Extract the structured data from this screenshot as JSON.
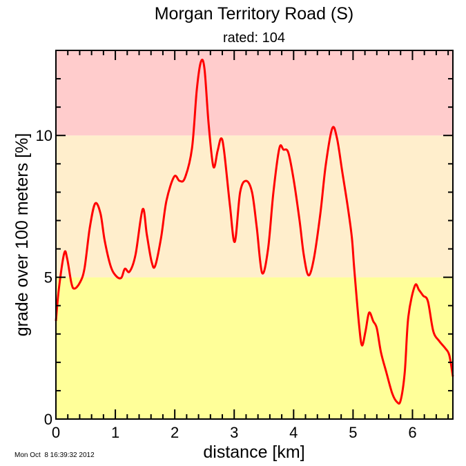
{
  "chart_data": {
    "type": "line",
    "title": "Morgan Territory Road (S)",
    "subtitle": "rated: 104",
    "xlabel": "distance [km]",
    "ylabel": "grade over 100 meters [%]",
    "timestamp": "Mon Oct  8 16:39:32 2012",
    "xlim": [
      0,
      6.68
    ],
    "ylim": [
      0,
      13
    ],
    "x_ticks": [
      0,
      1,
      2,
      3,
      4,
      5,
      6
    ],
    "y_ticks": [
      0,
      5,
      10
    ],
    "x_minor_step": 0.2,
    "y_minor_step": 1,
    "grid": false,
    "bands": [
      {
        "from": 0,
        "to": 5,
        "color": "#ffff99"
      },
      {
        "from": 5,
        "to": 10,
        "color": "#ffeecc"
      },
      {
        "from": 10,
        "to": 13,
        "color": "#ffcccc"
      }
    ],
    "line_color": "#ff0000",
    "series": [
      {
        "x": [
          0,
          0.05,
          0.14,
          0.19,
          0.26,
          0.31,
          0.4,
          0.48,
          0.57,
          0.66,
          0.75,
          0.82,
          0.92,
          1.01,
          1.1,
          1.16,
          1.24,
          1.34,
          1.46,
          1.53,
          1.61,
          1.67,
          1.77,
          1.86,
          1.99,
          2.08,
          2.17,
          2.29,
          2.37,
          2.44,
          2.5,
          2.57,
          2.65,
          2.72,
          2.78,
          2.83,
          2.93,
          3.01,
          3.1,
          3.2,
          3.3,
          3.38,
          3.47,
          3.57,
          3.66,
          3.76,
          3.83,
          3.91,
          4.0,
          4.1,
          4.17,
          4.25,
          4.34,
          4.45,
          4.54,
          4.65,
          4.73,
          4.82,
          4.91,
          4.98,
          5.02,
          5.1,
          5.15,
          5.21,
          5.27,
          5.34,
          5.4,
          5.47,
          5.56,
          5.66,
          5.74,
          5.8,
          5.87,
          5.93,
          6.04,
          6.11,
          6.18,
          6.26,
          6.35,
          6.45,
          6.55,
          6.62,
          6.68
        ],
        "y": [
          3.46,
          4.6,
          5.85,
          5.65,
          4.8,
          4.6,
          4.8,
          5.3,
          6.75,
          7.6,
          7.25,
          6.3,
          5.4,
          5.05,
          4.98,
          5.3,
          5.2,
          5.8,
          7.4,
          6.5,
          5.55,
          5.4,
          6.4,
          7.7,
          8.55,
          8.4,
          8.5,
          9.55,
          11.6,
          12.6,
          12.35,
          10.4,
          8.9,
          9.45,
          9.9,
          9.45,
          7.5,
          6.25,
          8.0,
          8.4,
          8.0,
          6.75,
          5.15,
          6.0,
          8.0,
          9.55,
          9.5,
          9.4,
          8.45,
          7.0,
          5.8,
          5.07,
          5.65,
          7.25,
          8.95,
          10.25,
          9.9,
          8.7,
          7.5,
          6.4,
          5.3,
          3.35,
          2.6,
          3.1,
          3.75,
          3.45,
          3.2,
          2.35,
          1.65,
          0.9,
          0.6,
          0.65,
          1.65,
          3.6,
          4.7,
          4.55,
          4.35,
          4.15,
          3.1,
          2.75,
          2.5,
          2.25,
          1.5
        ]
      }
    ]
  }
}
